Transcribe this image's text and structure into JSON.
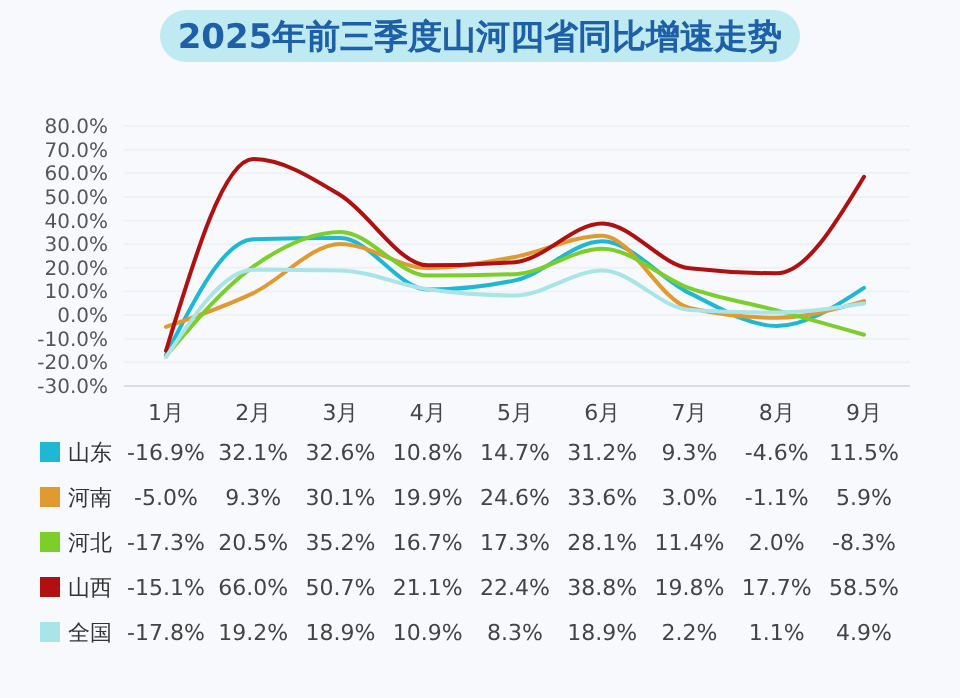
{
  "chart_data": {
    "type": "line",
    "title": "2025年前三季度山河四省同比增速走势",
    "categories": [
      "1月",
      "2月",
      "3月",
      "4月",
      "5月",
      "6月",
      "7月",
      "8月",
      "9月"
    ],
    "ylim": [
      -30,
      80
    ],
    "yticks": [
      {
        "value": -30,
        "label": "-30.0%"
      },
      {
        "value": -20,
        "label": "-20.0%"
      },
      {
        "value": -10,
        "label": "-10.0%"
      },
      {
        "value": 0,
        "label": "0.0%"
      },
      {
        "value": 10,
        "label": "10.0%"
      },
      {
        "value": 20,
        "label": "20.0%"
      },
      {
        "value": 30,
        "label": "30.0%"
      },
      {
        "value": 40,
        "label": "40.0%"
      },
      {
        "value": 50,
        "label": "50.0%"
      },
      {
        "value": 60,
        "label": "60.0%"
      },
      {
        "value": 70,
        "label": "70.0%"
      },
      {
        "value": 80,
        "label": "80.0%"
      }
    ],
    "grid": "y",
    "legend": "bottom",
    "marker": "none",
    "line_style": "solid",
    "series": [
      {
        "name": "山东",
        "color": "#1fb8d4",
        "values": [
          -16.9,
          32.1,
          32.6,
          10.8,
          14.7,
          31.2,
          9.3,
          -4.6,
          11.5
        ],
        "value_labels": [
          "-16.9%",
          "32.1%",
          "32.6%",
          "10.8%",
          "14.7%",
          "31.2%",
          "9.3%",
          "-4.6%",
          "11.5%"
        ]
      },
      {
        "name": "河南",
        "color": "#e09a2f",
        "values": [
          -5.0,
          9.3,
          30.1,
          19.9,
          24.6,
          33.6,
          3.0,
          -1.1,
          5.9
        ],
        "value_labels": [
          "-5.0%",
          "9.3%",
          "30.1%",
          "19.9%",
          "24.6%",
          "33.6%",
          "3.0%",
          "-1.1%",
          "5.9%"
        ]
      },
      {
        "name": "河北",
        "color": "#7ccf2a",
        "values": [
          -17.3,
          20.5,
          35.2,
          16.7,
          17.3,
          28.1,
          11.4,
          2.0,
          -8.3
        ],
        "value_labels": [
          "-17.3%",
          "20.5%",
          "35.2%",
          "16.7%",
          "17.3%",
          "28.1%",
          "11.4%",
          "2.0%",
          "-8.3%"
        ]
      },
      {
        "name": "山西",
        "color": "#b01010",
        "values": [
          -15.1,
          66.0,
          50.7,
          21.1,
          22.4,
          38.8,
          19.8,
          17.7,
          58.5
        ],
        "value_labels": [
          "-15.1%",
          "66.0%",
          "50.7%",
          "21.1%",
          "22.4%",
          "38.8%",
          "19.8%",
          "17.7%",
          "58.5%"
        ]
      },
      {
        "name": "全国",
        "color": "#a8e4e8",
        "values": [
          -17.8,
          19.2,
          18.9,
          10.9,
          8.3,
          18.9,
          2.2,
          1.1,
          4.9
        ],
        "value_labels": [
          "-17.8%",
          "19.2%",
          "18.9%",
          "10.9%",
          "8.3%",
          "18.9%",
          "2.2%",
          "1.1%",
          "4.9%"
        ]
      }
    ]
  }
}
